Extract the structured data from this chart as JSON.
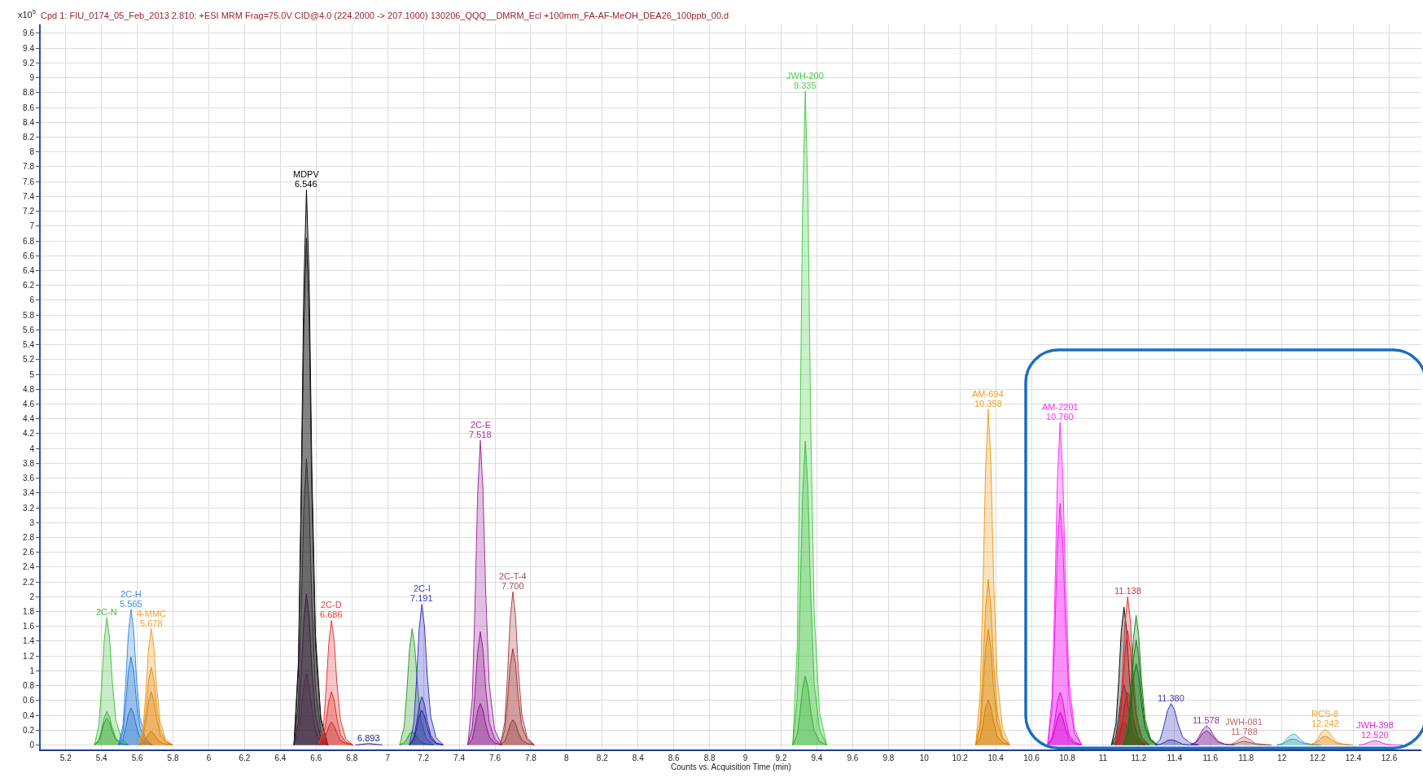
{
  "chart_data": {
    "type": "area",
    "title": "Cpd 1: FIU_0174_05_Feb_2013 2.810: +ESI MRM Frag=75.0V CID@4.0 (224.2000 -> 207.1000) 130206_QQQ__DMRM_Ecl +100mm_FA-AF-MeOH_DEA26_100ppb_00.d",
    "xlabel": "Counts vs. Acquisition Time (min)",
    "ylabel": "x10$^{5}$",
    "xlim": [
      5.06,
      12.78
    ],
    "ylim": [
      -0.06,
      9.72
    ],
    "xticks": [
      5.2,
      5.4,
      5.6,
      5.8,
      6,
      6.2,
      6.4,
      6.6,
      6.8,
      7,
      7.2,
      7.4,
      7.6,
      7.8,
      8,
      8.2,
      8.4,
      8.6,
      8.8,
      9,
      9.2,
      9.4,
      9.6,
      9.8,
      10,
      10.2,
      10.4,
      10.6,
      10.8,
      11,
      11.2,
      11.4,
      11.6,
      11.8,
      12,
      12.2,
      12.4,
      12.6
    ],
    "yticks": [
      0,
      0.2,
      0.4,
      0.6,
      0.8,
      1,
      1.2,
      1.4,
      1.6,
      1.8,
      2,
      2.2,
      2.4,
      2.6,
      2.8,
      3,
      3.2,
      3.4,
      3.6,
      3.8,
      4,
      4.2,
      4.4,
      4.6,
      4.8,
      5,
      5.2,
      5.4,
      5.6,
      5.8,
      6,
      6.2,
      6.4,
      6.6,
      6.8,
      7,
      7.2,
      7.4,
      7.6,
      7.8,
      8,
      8.2,
      8.4,
      8.6,
      8.8,
      9,
      9.2,
      9.4,
      9.6
    ],
    "grid": true,
    "line_style": "solid",
    "series": [
      {
        "name": "2C-N",
        "color": "#48c048",
        "x": [
          5.36,
          5.385,
          5.4,
          5.415,
          5.43,
          5.445,
          5.46,
          5.48,
          5.51,
          5.55
        ],
        "values": [
          0,
          0.26,
          0.77,
          1.41,
          1.72,
          1.44,
          0.86,
          0.34,
          0.09,
          0
        ]
      },
      {
        "color": "#3cb03c",
        "x": [
          5.36,
          5.385,
          5.4,
          5.415,
          5.43,
          5.445,
          5.46,
          5.48,
          5.51,
          5.55
        ],
        "values": [
          0,
          0.07,
          0.2,
          0.37,
          0.45,
          0.38,
          0.23,
          0.09,
          0.02,
          0
        ]
      },
      {
        "color": "#30a030",
        "x": [
          5.36,
          5.385,
          5.4,
          5.415,
          5.43,
          5.445,
          5.46,
          5.48,
          5.51,
          5.55
        ],
        "values": [
          0,
          0.05,
          0.16,
          0.3,
          0.36,
          0.3,
          0.18,
          0.07,
          0.02,
          0
        ]
      },
      {
        "name": "2C-H",
        "color": "#3c8fe6",
        "x": [
          5.495,
          5.52,
          5.535,
          5.55,
          5.565,
          5.58,
          5.595,
          5.615,
          5.645,
          5.685
        ],
        "values": [
          0,
          0.27,
          0.82,
          1.5,
          1.83,
          1.54,
          0.92,
          0.37,
          0.09,
          0
        ]
      },
      {
        "color": "#2f7fd8",
        "x": [
          5.495,
          5.52,
          5.535,
          5.55,
          5.565,
          5.58,
          5.595,
          5.615,
          5.645,
          5.685
        ],
        "values": [
          0,
          0.18,
          0.54,
          0.98,
          1.19,
          1,
          0.6,
          0.24,
          0.06,
          0
        ]
      },
      {
        "color": "#2570c8",
        "x": [
          5.495,
          5.52,
          5.535,
          5.55,
          5.565,
          5.58,
          5.595,
          5.615,
          5.645,
          5.685
        ],
        "values": [
          0,
          0.08,
          0.23,
          0.41,
          0.5,
          0.42,
          0.25,
          0.1,
          0.03,
          0
        ]
      },
      {
        "name": "4-MMC",
        "color": "#f2a02e",
        "x": [
          5.608,
          5.633,
          5.648,
          5.663,
          5.678,
          5.693,
          5.708,
          5.728,
          5.758,
          5.798
        ],
        "values": [
          0,
          0.24,
          0.71,
          1.29,
          1.57,
          1.32,
          0.79,
          0.31,
          0.08,
          0
        ]
      },
      {
        "color": "#e8921e",
        "x": [
          5.608,
          5.633,
          5.648,
          5.663,
          5.678,
          5.693,
          5.708,
          5.728,
          5.758,
          5.798
        ],
        "values": [
          0,
          0.16,
          0.47,
          0.86,
          1.05,
          0.88,
          0.53,
          0.21,
          0.05,
          0
        ]
      },
      {
        "color": "#de8410",
        "x": [
          5.608,
          5.633,
          5.648,
          5.663,
          5.678,
          5.693,
          5.708,
          5.728,
          5.758,
          5.798
        ],
        "values": [
          0,
          0.11,
          0.32,
          0.59,
          0.72,
          0.6,
          0.36,
          0.14,
          0.04,
          0
        ]
      },
      {
        "color": "#d07808",
        "x": [
          5.608,
          5.633,
          5.648,
          5.663,
          5.678,
          5.693,
          5.708,
          5.728,
          5.758,
          5.798
        ],
        "values": [
          0,
          0.03,
          0.08,
          0.15,
          0.18,
          0.15,
          0.09,
          0.04,
          0.01,
          0
        ]
      },
      {
        "name": "MDPV",
        "color": "#000000",
        "x": [
          6.476,
          6.501,
          6.516,
          6.531,
          6.546,
          6.561,
          6.576,
          6.596,
          6.626,
          6.666
        ],
        "values": [
          0,
          1.12,
          3.37,
          6.14,
          7.49,
          6.29,
          3.75,
          1.5,
          0.37,
          0
        ]
      },
      {
        "color": "#1c1c1c",
        "x": [
          6.476,
          6.501,
          6.516,
          6.531,
          6.546,
          6.561,
          6.576,
          6.596,
          6.626,
          6.666
        ],
        "values": [
          0,
          1.03,
          3.08,
          5.61,
          6.84,
          5.75,
          3.42,
          1.37,
          0.34,
          0
        ]
      },
      {
        "color": "#2e2e2e",
        "x": [
          6.476,
          6.501,
          6.516,
          6.531,
          6.546,
          6.561,
          6.576,
          6.596,
          6.626,
          6.666
        ],
        "values": [
          0,
          0.58,
          1.74,
          3.17,
          3.86,
          3.24,
          1.93,
          0.77,
          0.19,
          0
        ]
      },
      {
        "color": "#3c1c3c",
        "x": [
          6.476,
          6.501,
          6.516,
          6.531,
          6.546,
          6.561,
          6.576,
          6.596,
          6.626,
          6.666
        ],
        "values": [
          0,
          0.31,
          0.92,
          1.67,
          2.04,
          1.71,
          1.02,
          0.41,
          0.1,
          0
        ]
      },
      {
        "color": "#502850",
        "x": [
          6.476,
          6.501,
          6.516,
          6.531,
          6.546,
          6.561,
          6.576,
          6.596,
          6.626,
          6.666
        ],
        "values": [
          0,
          0.15,
          0.44,
          0.8,
          0.97,
          0.81,
          0.49,
          0.19,
          0.05,
          0
        ]
      },
      {
        "name": "2C-D",
        "color": "#e83a3a",
        "x": [
          6.616,
          6.641,
          6.656,
          6.671,
          6.686,
          6.701,
          6.716,
          6.736,
          6.766,
          6.806
        ],
        "values": [
          0,
          0.25,
          0.76,
          1.38,
          1.68,
          1.41,
          0.84,
          0.34,
          0.08,
          0
        ]
      },
      {
        "color": "#d82c2c",
        "x": [
          6.616,
          6.641,
          6.656,
          6.671,
          6.686,
          6.701,
          6.716,
          6.736,
          6.766,
          6.806
        ],
        "values": [
          0,
          0.11,
          0.32,
          0.59,
          0.72,
          0.6,
          0.36,
          0.14,
          0.04,
          0
        ]
      },
      {
        "color": "#c82020",
        "x": [
          6.616,
          6.641,
          6.656,
          6.671,
          6.686,
          6.701,
          6.716,
          6.736,
          6.766,
          6.806
        ],
        "values": [
          0,
          0.05,
          0.14,
          0.25,
          0.31,
          0.26,
          0.16,
          0.06,
          0.02,
          0
        ]
      },
      {
        "color": "#2020a0",
        "x": [
          6.82,
          6.893,
          6.97
        ],
        "values": [
          0,
          0.02,
          0
        ]
      },
      {
        "color": "#2fa02f",
        "x": [
          7.067,
          7.092,
          7.107,
          7.122,
          7.137,
          7.152,
          7.167,
          7.187,
          7.217,
          7.257
        ],
        "values": [
          0,
          0.24,
          0.71,
          1.29,
          1.57,
          1.32,
          0.79,
          0.31,
          0.08,
          0
        ]
      },
      {
        "color": "#248c24",
        "x": [
          7.067,
          7.092,
          7.107,
          7.122,
          7.137,
          7.152,
          7.167,
          7.187,
          7.217,
          7.257
        ],
        "values": [
          0,
          0.03,
          0.08,
          0.15,
          0.18,
          0.15,
          0.09,
          0.04,
          0.01,
          0
        ]
      },
      {
        "name": "2C-I",
        "color": "#3838c8",
        "x": [
          7.121,
          7.146,
          7.161,
          7.176,
          7.191,
          7.206,
          7.221,
          7.241,
          7.271,
          7.311
        ],
        "values": [
          0,
          0.29,
          0.86,
          1.56,
          1.9,
          1.6,
          0.95,
          0.38,
          0.1,
          0
        ]
      },
      {
        "color": "#2c2cb4",
        "x": [
          7.121,
          7.146,
          7.161,
          7.176,
          7.191,
          7.206,
          7.221,
          7.241,
          7.271,
          7.311
        ],
        "values": [
          0,
          0.1,
          0.29,
          0.53,
          0.65,
          0.55,
          0.33,
          0.13,
          0.03,
          0
        ]
      },
      {
        "color": "#2222a0",
        "x": [
          7.121,
          7.146,
          7.161,
          7.176,
          7.191,
          7.206,
          7.221,
          7.241,
          7.271,
          7.311
        ],
        "values": [
          0,
          0.07,
          0.21,
          0.39,
          0.47,
          0.39,
          0.24,
          0.09,
          0.02,
          0
        ]
      },
      {
        "name": "2C-E",
        "color": "#a22ea2",
        "x": [
          7.448,
          7.473,
          7.488,
          7.503,
          7.518,
          7.533,
          7.548,
          7.568,
          7.598,
          7.638
        ],
        "values": [
          0,
          0.62,
          1.85,
          3.37,
          4.11,
          3.45,
          2.06,
          0.82,
          0.21,
          0
        ]
      },
      {
        "color": "#922292",
        "x": [
          7.448,
          7.473,
          7.488,
          7.503,
          7.518,
          7.533,
          7.548,
          7.568,
          7.598,
          7.638
        ],
        "values": [
          0,
          0.23,
          0.69,
          1.25,
          1.53,
          1.29,
          0.77,
          0.31,
          0.08,
          0
        ]
      },
      {
        "color": "#821882",
        "x": [
          7.448,
          7.473,
          7.488,
          7.503,
          7.518,
          7.533,
          7.548,
          7.568,
          7.598,
          7.638
        ],
        "values": [
          0,
          0.08,
          0.25,
          0.46,
          0.56,
          0.47,
          0.28,
          0.11,
          0.03,
          0
        ]
      },
      {
        "name": "2C-T-4",
        "color": "#b04a4a",
        "x": [
          7.63,
          7.655,
          7.67,
          7.685,
          7.7,
          7.715,
          7.73,
          7.75,
          7.78,
          7.82
        ],
        "values": [
          0,
          0.31,
          0.93,
          1.7,
          2.07,
          1.74,
          1.04,
          0.41,
          0.1,
          0
        ]
      },
      {
        "color": "#a03c3c",
        "x": [
          7.63,
          7.655,
          7.67,
          7.685,
          7.7,
          7.715,
          7.73,
          7.75,
          7.78,
          7.82
        ],
        "values": [
          0,
          0.2,
          0.59,
          1.07,
          1.3,
          1.09,
          0.65,
          0.26,
          0.07,
          0
        ]
      },
      {
        "color": "#903030",
        "x": [
          7.63,
          7.655,
          7.67,
          7.685,
          7.7,
          7.715,
          7.73,
          7.75,
          7.78,
          7.82
        ],
        "values": [
          0,
          0.05,
          0.15,
          0.28,
          0.34,
          0.29,
          0.17,
          0.07,
          0.02,
          0
        ]
      },
      {
        "name": "JWH-200",
        "color": "#4ccc4c",
        "x": [
          9.265,
          9.29,
          9.305,
          9.32,
          9.335,
          9.35,
          9.365,
          9.385,
          9.415,
          9.455
        ],
        "values": [
          0,
          1.32,
          3.97,
          7.23,
          8.82,
          7.41,
          4.41,
          1.76,
          0.44,
          0
        ]
      },
      {
        "color": "#40bc40",
        "x": [
          9.265,
          9.29,
          9.305,
          9.32,
          9.335,
          9.35,
          9.365,
          9.385,
          9.415,
          9.455
        ],
        "values": [
          0,
          0.62,
          1.85,
          3.36,
          4.1,
          3.44,
          2.05,
          0.82,
          0.21,
          0
        ]
      },
      {
        "color": "#34ac34",
        "x": [
          9.265,
          9.29,
          9.305,
          9.32,
          9.335,
          9.35,
          9.365,
          9.385,
          9.415,
          9.455
        ],
        "values": [
          0,
          0.14,
          0.42,
          0.76,
          0.93,
          0.78,
          0.47,
          0.19,
          0.05,
          0
        ]
      },
      {
        "name": "AM-694",
        "color": "#f0a020",
        "x": [
          10.288,
          10.313,
          10.328,
          10.343,
          10.358,
          10.373,
          10.388,
          10.408,
          10.438,
          10.478
        ],
        "values": [
          0,
          0.68,
          2.04,
          3.71,
          4.53,
          3.81,
          2.27,
          0.91,
          0.23,
          0
        ]
      },
      {
        "color": "#e69416",
        "x": [
          10.288,
          10.313,
          10.328,
          10.343,
          10.358,
          10.373,
          10.388,
          10.408,
          10.438,
          10.478
        ],
        "values": [
          0,
          0.33,
          1,
          1.83,
          2.23,
          1.87,
          1.12,
          0.45,
          0.11,
          0
        ]
      },
      {
        "color": "#dc880c",
        "x": [
          10.288,
          10.313,
          10.328,
          10.343,
          10.358,
          10.373,
          10.388,
          10.408,
          10.438,
          10.478
        ],
        "values": [
          0,
          0.23,
          0.7,
          1.28,
          1.56,
          1.31,
          0.78,
          0.31,
          0.08,
          0
        ]
      },
      {
        "color": "#d27c04",
        "x": [
          10.288,
          10.313,
          10.328,
          10.343,
          10.358,
          10.373,
          10.388,
          10.408,
          10.438,
          10.478
        ],
        "values": [
          0,
          0.09,
          0.27,
          0.5,
          0.61,
          0.51,
          0.31,
          0.12,
          0.03,
          0
        ]
      },
      {
        "name": "AM-2201",
        "color": "#ff30ff",
        "x": [
          10.69,
          10.715,
          10.73,
          10.745,
          10.76,
          10.775,
          10.79,
          10.81,
          10.84,
          10.88
        ],
        "values": [
          0,
          0.65,
          1.96,
          3.57,
          4.35,
          3.65,
          2.18,
          0.87,
          0.22,
          0
        ]
      },
      {
        "color": "#f020f0",
        "x": [
          10.69,
          10.715,
          10.73,
          10.745,
          10.76,
          10.775,
          10.79,
          10.81,
          10.84,
          10.88
        ],
        "values": [
          0,
          0.49,
          1.47,
          2.67,
          3.26,
          2.74,
          1.63,
          0.65,
          0.16,
          0
        ]
      },
      {
        "color": "#e010e0",
        "x": [
          10.69,
          10.715,
          10.73,
          10.745,
          10.76,
          10.775,
          10.79,
          10.81,
          10.84,
          10.88
        ],
        "values": [
          0,
          0.11,
          0.32,
          0.58,
          0.71,
          0.6,
          0.36,
          0.14,
          0.04,
          0
        ]
      },
      {
        "color": "#d000d0",
        "x": [
          10.69,
          10.715,
          10.73,
          10.745,
          10.76,
          10.775,
          10.79,
          10.81,
          10.84,
          10.88
        ],
        "values": [
          0,
          0.07,
          0.2,
          0.36,
          0.44,
          0.37,
          0.22,
          0.09,
          0.02,
          0
        ]
      },
      {
        "color": "#0a0a0a",
        "x": [
          11.047,
          11.072,
          11.087,
          11.102,
          11.117,
          11.132,
          11.147,
          11.167,
          11.197,
          11.237
        ],
        "values": [
          0,
          0.28,
          0.84,
          1.53,
          1.86,
          1.56,
          0.93,
          0.37,
          0.09,
          0
        ]
      },
      {
        "color": "#262626",
        "x": [
          11.047,
          11.072,
          11.087,
          11.102,
          11.117,
          11.132,
          11.147,
          11.167,
          11.197,
          11.237
        ],
        "values": [
          0,
          0.12,
          0.36,
          0.66,
          0.81,
          0.68,
          0.41,
          0.16,
          0.04,
          0
        ]
      },
      {
        "color": "#404040",
        "x": [
          11.047,
          11.072,
          11.087,
          11.102,
          11.117,
          11.132,
          11.147,
          11.167,
          11.197,
          11.237
        ],
        "values": [
          0,
          0.05,
          0.14,
          0.25,
          0.31,
          0.26,
          0.16,
          0.06,
          0.02,
          0
        ]
      },
      {
        "color": "#e03030",
        "x": [
          11.068,
          11.093,
          11.108,
          11.123,
          11.138,
          11.153,
          11.168,
          11.188,
          11.218,
          11.258
        ],
        "values": [
          0,
          0.3,
          0.9,
          1.64,
          2,
          1.68,
          1,
          0.4,
          0.1,
          0
        ]
      },
      {
        "color": "#d02424",
        "x": [
          11.068,
          11.093,
          11.108,
          11.123,
          11.138,
          11.153,
          11.168,
          11.188,
          11.218,
          11.258
        ],
        "values": [
          0,
          0.23,
          0.69,
          1.26,
          1.54,
          1.29,
          0.77,
          0.31,
          0.08,
          0
        ]
      },
      {
        "color": "#c01818",
        "x": [
          11.068,
          11.093,
          11.108,
          11.123,
          11.138,
          11.153,
          11.168,
          11.188,
          11.218,
          11.258
        ],
        "values": [
          0,
          0.11,
          0.32,
          0.58,
          0.71,
          0.6,
          0.36,
          0.14,
          0.04,
          0
        ]
      },
      {
        "color": "#208a20",
        "x": [
          11.115,
          11.14,
          11.155,
          11.17,
          11.185,
          11.2,
          11.215,
          11.235,
          11.265,
          11.305
        ],
        "values": [
          0,
          0.26,
          0.79,
          1.44,
          1.75,
          1.47,
          0.88,
          0.35,
          0.09,
          0
        ]
      },
      {
        "color": "#1a7a1a",
        "x": [
          11.115,
          11.14,
          11.155,
          11.17,
          11.185,
          11.2,
          11.215,
          11.235,
          11.265,
          11.305
        ],
        "values": [
          0,
          0.21,
          0.64,
          1.16,
          1.42,
          1.19,
          0.71,
          0.28,
          0.07,
          0
        ]
      },
      {
        "color": "#146c14",
        "x": [
          11.115,
          11.14,
          11.155,
          11.17,
          11.185,
          11.2,
          11.215,
          11.235,
          11.265,
          11.305
        ],
        "values": [
          0,
          0.17,
          0.5,
          0.9,
          1.1,
          0.92,
          0.55,
          0.22,
          0.06,
          0
        ]
      },
      {
        "color": "#3838c0",
        "x": [
          11.29,
          11.32,
          11.34,
          11.36,
          11.38,
          11.4,
          11.42,
          11.445,
          11.485,
          11.535
        ],
        "values": [
          0,
          0.08,
          0.25,
          0.46,
          0.56,
          0.47,
          0.28,
          0.11,
          0.03,
          0
        ]
      },
      {
        "color": "#2a2aa8",
        "x": [
          11.29,
          11.32,
          11.34,
          11.36,
          11.38,
          11.4,
          11.42,
          11.445,
          11.485,
          11.535
        ],
        "values": [
          0,
          0.01,
          0.03,
          0.06,
          0.07,
          0.06,
          0.04,
          0.01,
          0,
          0
        ]
      },
      {
        "color": "#8a30a0",
        "x": [
          11.488,
          11.518,
          11.538,
          11.558,
          11.578,
          11.598,
          11.618,
          11.643,
          11.683,
          11.733
        ],
        "values": [
          0,
          0.04,
          0.12,
          0.21,
          0.26,
          0.22,
          0.13,
          0.05,
          0.01,
          0
        ]
      },
      {
        "color": "#7a2490",
        "x": [
          11.488,
          11.518,
          11.538,
          11.558,
          11.578,
          11.598,
          11.618,
          11.643,
          11.683,
          11.733
        ],
        "values": [
          0,
          0.03,
          0.09,
          0.16,
          0.19,
          0.16,
          0.1,
          0.04,
          0.01,
          0
        ]
      },
      {
        "name": "JWH-081",
        "color": "#c06868",
        "x": [
          11.698,
          11.728,
          11.748,
          11.768,
          11.788,
          11.808,
          11.828,
          11.853,
          11.893,
          11.943
        ],
        "values": [
          0,
          0.02,
          0.05,
          0.09,
          0.11,
          0.09,
          0.06,
          0.02,
          0.01,
          0
        ]
      },
      {
        "color": "#a85050",
        "x": [
          11.698,
          11.728,
          11.748,
          11.768,
          11.788,
          11.808,
          11.828,
          11.853,
          11.893,
          11.943
        ],
        "values": [
          0,
          0.01,
          0.02,
          0.04,
          0.05,
          0.04,
          0.03,
          0.01,
          0,
          0
        ]
      },
      {
        "color": "#40b0e8",
        "x": [
          11.972,
          12.002,
          12.022,
          12.042,
          12.062,
          12.082,
          12.102,
          12.127,
          12.167,
          12.217
        ],
        "values": [
          0,
          0.02,
          0.07,
          0.12,
          0.15,
          0.13,
          0.08,
          0.03,
          0.01,
          0
        ]
      },
      {
        "color": "#2aa89a",
        "x": [
          11.972,
          12.002,
          12.022,
          12.042,
          12.062,
          12.082,
          12.102,
          12.127,
          12.167,
          12.217
        ],
        "values": [
          0,
          0.01,
          0.04,
          0.07,
          0.08,
          0.07,
          0.04,
          0.02,
          0,
          0
        ]
      },
      {
        "name": "RCS-8",
        "color": "#f0a030",
        "x": [
          12.152,
          12.182,
          12.202,
          12.222,
          12.242,
          12.262,
          12.282,
          12.307,
          12.347,
          12.397
        ],
        "values": [
          0,
          0.03,
          0.09,
          0.17,
          0.21,
          0.18,
          0.11,
          0.04,
          0.01,
          0
        ]
      },
      {
        "color": "#e08c28",
        "x": [
          12.152,
          12.182,
          12.202,
          12.222,
          12.242,
          12.262,
          12.282,
          12.307,
          12.347,
          12.397
        ],
        "values": [
          0,
          0.02,
          0.05,
          0.1,
          0.12,
          0.1,
          0.06,
          0.02,
          0.01,
          0
        ]
      },
      {
        "name": "JWH-398",
        "color": "#e030e0",
        "x": [
          12.43,
          12.46,
          12.48,
          12.5,
          12.52,
          12.54,
          12.56,
          12.585,
          12.625,
          12.675
        ],
        "values": [
          0,
          0.01,
          0.03,
          0.05,
          0.06,
          0.05,
          0.03,
          0.01,
          0,
          0
        ]
      }
    ],
    "annotations": [
      {
        "text": "5.565",
        "x": 5.565,
        "y": 1.83
      },
      {
        "text": "5.678",
        "x": 5.678,
        "y": 1.57
      },
      {
        "text": "6.546",
        "x": 6.546,
        "y": 7.49
      },
      {
        "text": "6.686",
        "x": 6.686,
        "y": 1.68
      },
      {
        "text": "6.893",
        "x": 6.893,
        "y": 0.02
      },
      {
        "text": "7.191",
        "x": 7.191,
        "y": 1.9
      },
      {
        "text": "7.518",
        "x": 7.518,
        "y": 4.11
      },
      {
        "text": "7.700",
        "x": 7.7,
        "y": 2.07
      },
      {
        "text": "9.335",
        "x": 9.335,
        "y": 8.82
      },
      {
        "text": "10.358",
        "x": 10.358,
        "y": 4.53
      },
      {
        "text": "10.760",
        "x": 10.76,
        "y": 4.35
      },
      {
        "text": "11.138",
        "x": 11.138,
        "y": 2
      },
      {
        "text": "11.380",
        "x": 11.38,
        "y": 0.56
      },
      {
        "text": "11.578",
        "x": 11.578,
        "y": 0.26
      },
      {
        "text": "11.788",
        "x": 11.788,
        "y": 0.11
      },
      {
        "text": "12.242",
        "x": 12.242,
        "y": 0.21
      },
      {
        "text": "12.520",
        "x": 12.52,
        "y": 0.06
      }
    ]
  }
}
